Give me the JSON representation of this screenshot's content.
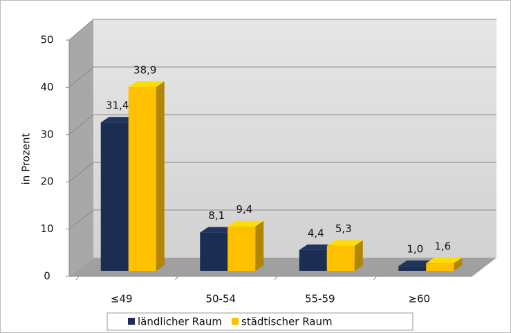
{
  "chart_data": {
    "type": "bar3d",
    "y_label": "in Prozent",
    "categories": [
      "≤49",
      "50-54",
      "55-59",
      "≥60"
    ],
    "series": [
      {
        "name": "ländlicher Raum",
        "color": "#1b2d52",
        "values": [
          31.4,
          8.1,
          4.4,
          1.0
        ],
        "value_labels": [
          "31,4",
          "8,1",
          "4,4",
          "1,0"
        ]
      },
      {
        "name": "städtischer Raum",
        "color": "#ffc000",
        "values": [
          38.9,
          9.4,
          5.3,
          1.6
        ],
        "value_labels": [
          "38,9",
          "9,4",
          "5,3",
          "1,6"
        ]
      }
    ],
    "ylim": [
      0,
      50
    ],
    "yticks": [
      0,
      10,
      20,
      30,
      40,
      50
    ],
    "grid": true,
    "legend": "bottom"
  }
}
